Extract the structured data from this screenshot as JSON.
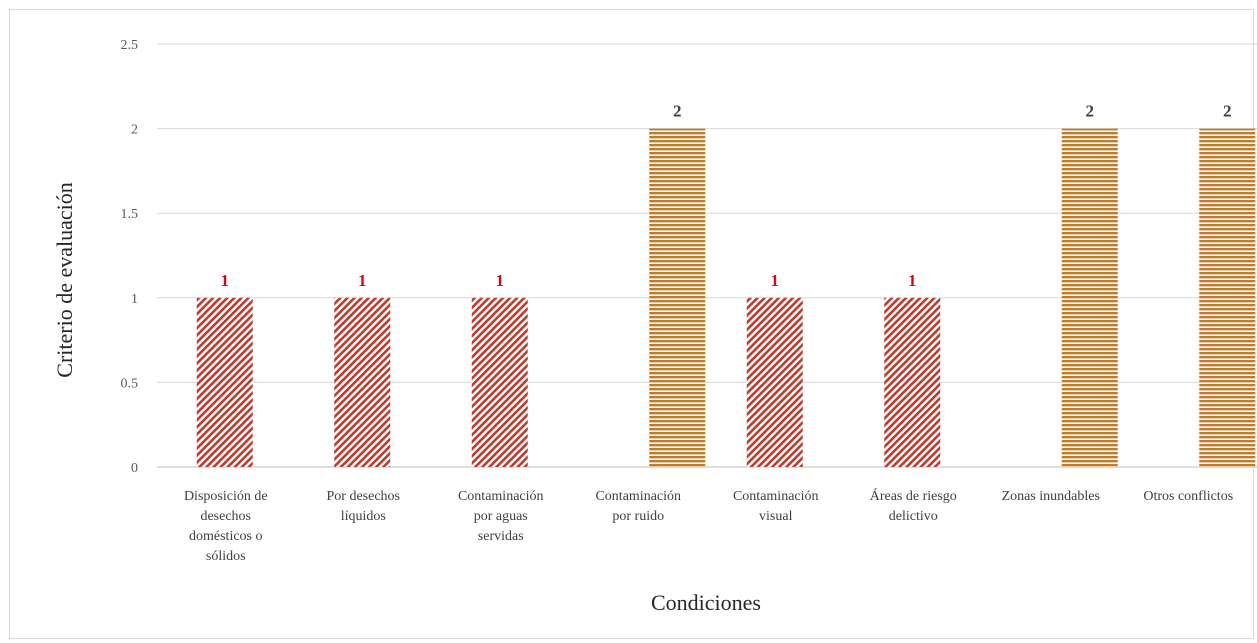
{
  "chart_data": {
    "type": "bar",
    "categories": [
      [
        "Disposición de",
        "desechos",
        "domésticos o",
        "sólidos"
      ],
      [
        "Por desechos",
        "líquidos"
      ],
      [
        "Contaminación",
        "por aguas",
        "servidas"
      ],
      [
        "Contaminación",
        "por ruido"
      ],
      [
        "Contaminación",
        "visual"
      ],
      [
        "Áreas de riesgo",
        "delictivo"
      ],
      [
        "Zonas inundables"
      ],
      [
        "Otros conflictos"
      ]
    ],
    "values": [
      1,
      1,
      1,
      2,
      1,
      1,
      2,
      2
    ],
    "data_labels": [
      "1",
      "1",
      "1",
      "2",
      "1",
      "1",
      "2",
      "2"
    ],
    "xlabel": "Condiciones",
    "ylabel": "Criterio de evaluación",
    "ylim": [
      0,
      2.5
    ],
    "yticks": [
      "0",
      "0.5",
      "1",
      "1.5",
      "2",
      "2.5"
    ],
    "grid": true,
    "legend": "none",
    "colors": {
      "value_1_fill": "#c0392b",
      "value_1_label": "#e0001b",
      "value_2_fill": "#c47a2c",
      "value_2_label": "#404040",
      "gridline": "#d9d9d9",
      "axis": "#bfbfbf"
    }
  }
}
